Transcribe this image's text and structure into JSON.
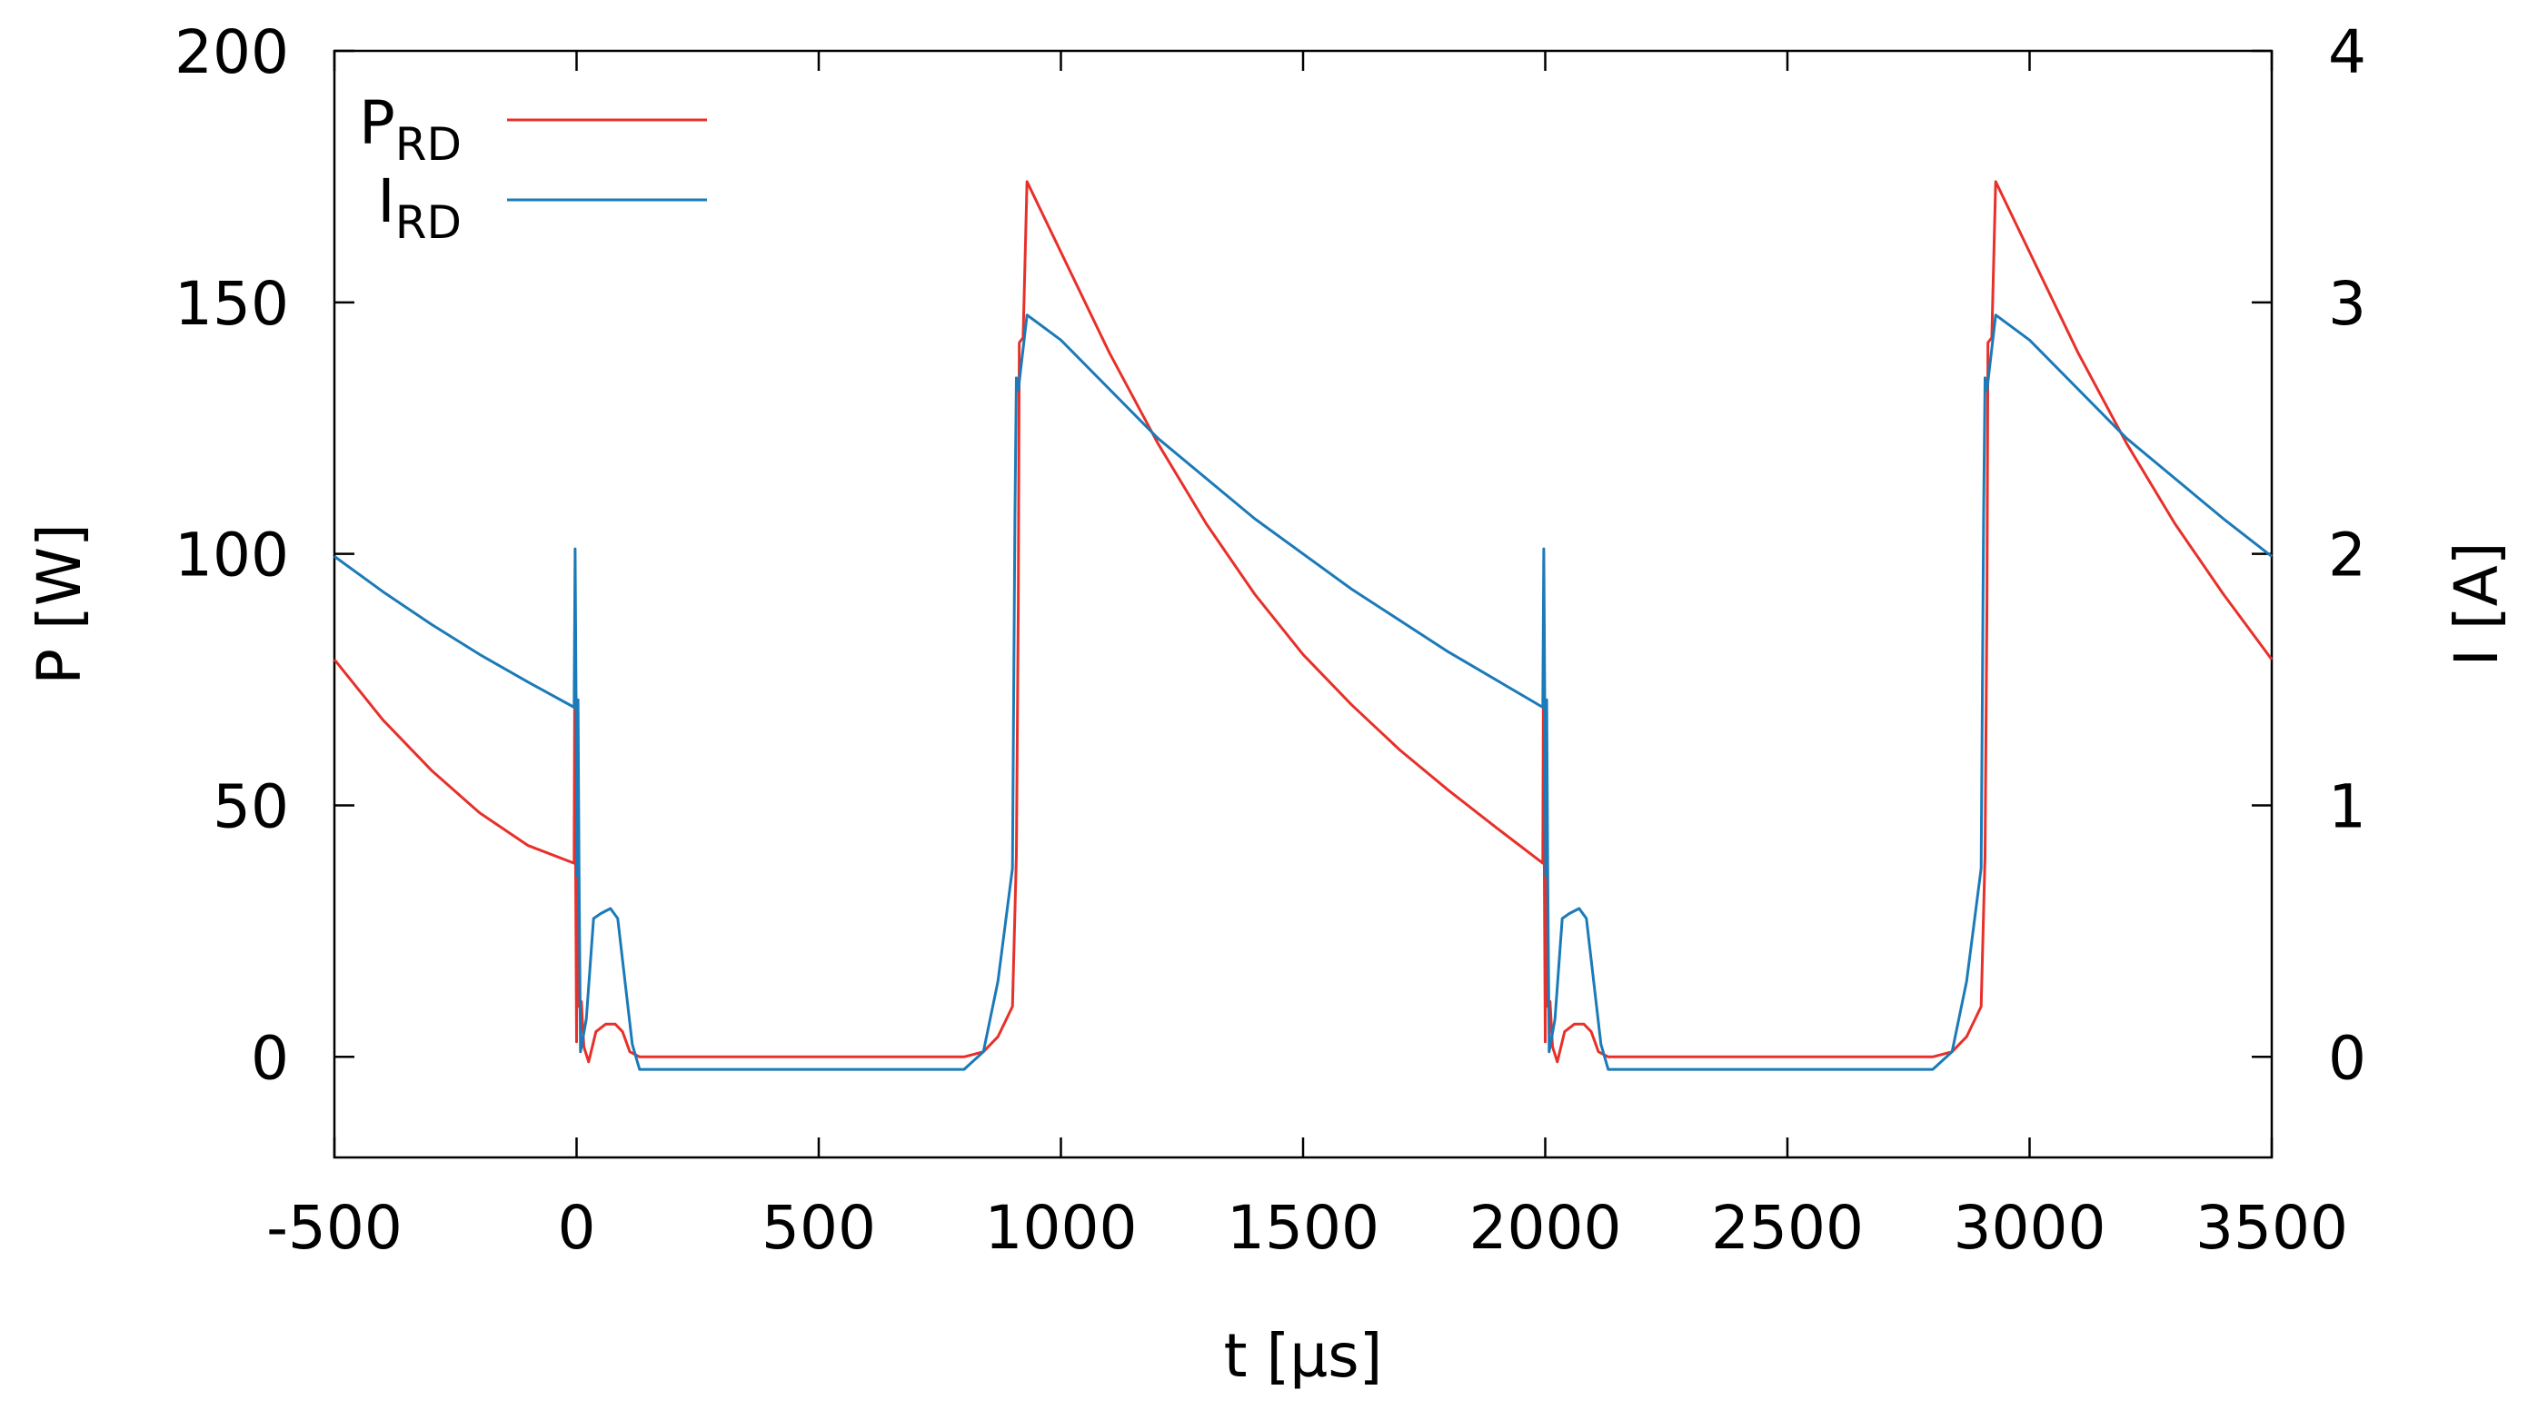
{
  "chart_data": {
    "type": "line",
    "x_axis": {
      "label": "t [µs]",
      "range": [
        -500,
        3500
      ],
      "ticks": [
        -500,
        0,
        500,
        1000,
        1500,
        2000,
        2500,
        3000,
        3500
      ],
      "tick_labels": [
        "-500",
        "0",
        "500",
        "1000",
        "1500",
        "2000",
        "2500",
        "3000",
        "3500"
      ]
    },
    "y_axis_left": {
      "label": "P [W]",
      "range": [
        -20,
        200
      ],
      "ticks": [
        0,
        50,
        100,
        150,
        200
      ],
      "tick_labels": [
        "0",
        "50",
        "100",
        "150",
        "200"
      ]
    },
    "y_axis_right": {
      "label": "I [A]",
      "range": [
        -0.4,
        4
      ],
      "ticks": [
        0,
        1,
        2,
        3,
        4
      ],
      "tick_labels": [
        "0",
        "1",
        "2",
        "3",
        "4"
      ]
    },
    "grid": false,
    "legend_position": "top-left",
    "series": [
      {
        "name": "P",
        "name_sub": "RD",
        "axis": "left",
        "color": "#e8302a",
        "points": [
          [
            -500,
            79
          ],
          [
            -400,
            67
          ],
          [
            -300,
            57
          ],
          [
            -200,
            48.5
          ],
          [
            -100,
            42
          ],
          [
            -5,
            38.5
          ],
          [
            -4,
            70
          ],
          [
            -2,
            40
          ],
          [
            0,
            3
          ],
          [
            2,
            45
          ],
          [
            5,
            10
          ],
          [
            10,
            11
          ],
          [
            15,
            2
          ],
          [
            25,
            -1
          ],
          [
            40,
            5
          ],
          [
            60,
            6.5
          ],
          [
            80,
            6.5
          ],
          [
            95,
            5
          ],
          [
            110,
            1
          ],
          [
            130,
            0
          ],
          [
            500,
            0
          ],
          [
            800,
            0
          ],
          [
            840,
            1
          ],
          [
            870,
            4
          ],
          [
            900,
            10
          ],
          [
            908,
            40
          ],
          [
            912,
            90
          ],
          [
            914,
            142
          ],
          [
            922,
            143
          ],
          [
            930,
            174
          ],
          [
            1000,
            160
          ],
          [
            1100,
            140
          ],
          [
            1200,
            122
          ],
          [
            1300,
            106
          ],
          [
            1400,
            92
          ],
          [
            1500,
            80
          ],
          [
            1600,
            70
          ],
          [
            1700,
            61
          ],
          [
            1800,
            53
          ],
          [
            1900,
            45.5
          ],
          [
            1995,
            38.5
          ],
          [
            1996,
            70
          ],
          [
            1998,
            40
          ],
          [
            2000,
            3
          ],
          [
            2002,
            45
          ],
          [
            2005,
            10
          ],
          [
            2010,
            11
          ],
          [
            2015,
            2
          ],
          [
            2025,
            -1
          ],
          [
            2040,
            5
          ],
          [
            2060,
            6.5
          ],
          [
            2080,
            6.5
          ],
          [
            2095,
            5
          ],
          [
            2110,
            1
          ],
          [
            2130,
            0
          ],
          [
            2500,
            0
          ],
          [
            2800,
            0
          ],
          [
            2840,
            1
          ],
          [
            2870,
            4
          ],
          [
            2900,
            10
          ],
          [
            2908,
            40
          ],
          [
            2912,
            90
          ],
          [
            2914,
            142
          ],
          [
            2922,
            143
          ],
          [
            2930,
            174
          ],
          [
            3000,
            160
          ],
          [
            3100,
            140
          ],
          [
            3200,
            122
          ],
          [
            3300,
            106
          ],
          [
            3400,
            92
          ],
          [
            3500,
            79
          ]
        ]
      },
      {
        "name": "I",
        "name_sub": "RD",
        "axis": "right",
        "color": "#1b7ab8",
        "points": [
          [
            -500,
            1.99
          ],
          [
            -400,
            1.85
          ],
          [
            -300,
            1.72
          ],
          [
            -200,
            1.6
          ],
          [
            -100,
            1.49
          ],
          [
            -5,
            1.39
          ],
          [
            -3,
            2.02
          ],
          [
            -1,
            1.4
          ],
          [
            1,
            0.72
          ],
          [
            3,
            1.42
          ],
          [
            5,
            0.75
          ],
          [
            8,
            0.02
          ],
          [
            20,
            0.15
          ],
          [
            35,
            0.55
          ],
          [
            50,
            0.57
          ],
          [
            70,
            0.59
          ],
          [
            85,
            0.55
          ],
          [
            100,
            0.3
          ],
          [
            115,
            0.05
          ],
          [
            130,
            -0.05
          ],
          [
            500,
            -0.05
          ],
          [
            800,
            -0.05
          ],
          [
            840,
            0.02
          ],
          [
            870,
            0.3
          ],
          [
            900,
            0.75
          ],
          [
            905,
            2.15
          ],
          [
            908,
            2.7
          ],
          [
            912,
            2.65
          ],
          [
            918,
            2.75
          ],
          [
            930,
            2.95
          ],
          [
            1000,
            2.85
          ],
          [
            1200,
            2.46
          ],
          [
            1400,
            2.14
          ],
          [
            1600,
            1.86
          ],
          [
            1800,
            1.61
          ],
          [
            1995,
            1.39
          ],
          [
            1997,
            2.02
          ],
          [
            1999,
            1.4
          ],
          [
            2001,
            0.72
          ],
          [
            2003,
            1.42
          ],
          [
            2005,
            0.75
          ],
          [
            2008,
            0.02
          ],
          [
            2020,
            0.15
          ],
          [
            2035,
            0.55
          ],
          [
            2050,
            0.57
          ],
          [
            2070,
            0.59
          ],
          [
            2085,
            0.55
          ],
          [
            2100,
            0.3
          ],
          [
            2115,
            0.05
          ],
          [
            2130,
            -0.05
          ],
          [
            2500,
            -0.05
          ],
          [
            2800,
            -0.05
          ],
          [
            2840,
            0.02
          ],
          [
            2870,
            0.3
          ],
          [
            2900,
            0.75
          ],
          [
            2905,
            2.15
          ],
          [
            2908,
            2.7
          ],
          [
            2912,
            2.65
          ],
          [
            2918,
            2.75
          ],
          [
            2930,
            2.95
          ],
          [
            3000,
            2.85
          ],
          [
            3200,
            2.46
          ],
          [
            3400,
            2.14
          ],
          [
            3500,
            1.99
          ]
        ]
      }
    ]
  }
}
